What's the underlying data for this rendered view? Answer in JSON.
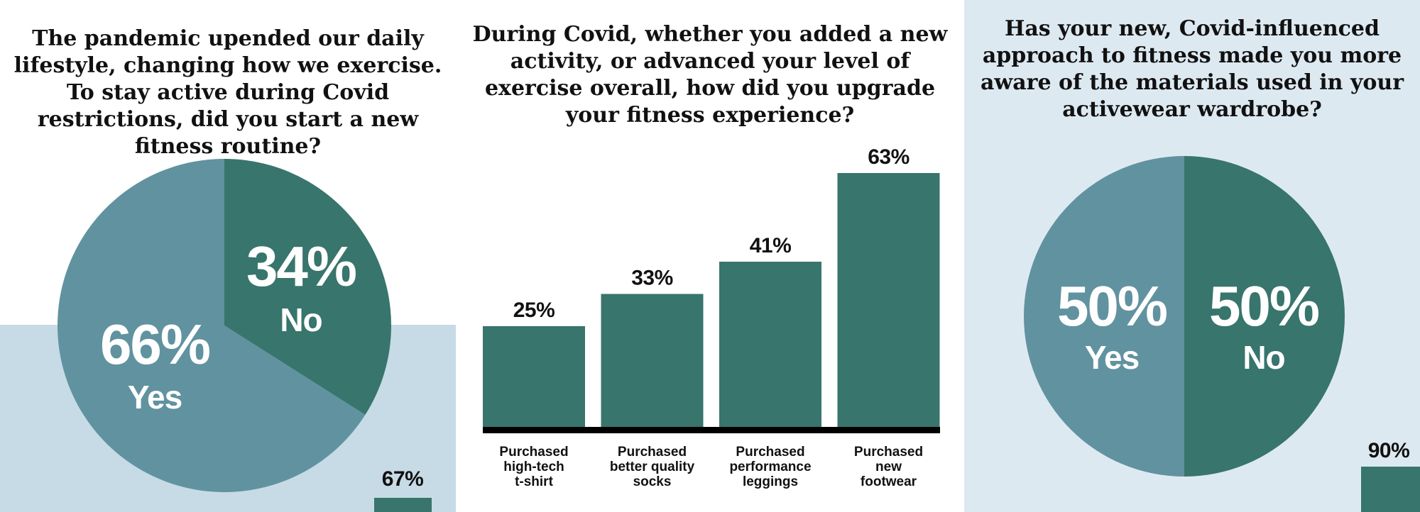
{
  "colors": {
    "dark": "#38756c",
    "light": "#6192a0",
    "axis": "#000000",
    "panel_light_blue": "#c6dbe6",
    "panel_pale_blue": "#dde9f1"
  },
  "chart_data": [
    {
      "type": "pie",
      "title": "The pandemic upended our daily lifestyle, changing how we exercise. To stay active during Covid restrictions, did you start a new fitness routine?",
      "slices": [
        {
          "label": "No",
          "value": 34,
          "value_text": "34%",
          "color": "#38756c"
        },
        {
          "label": "Yes",
          "value": 66,
          "value_text": "66%",
          "color": "#6192a0"
        }
      ],
      "partial_bar_label": "67%"
    },
    {
      "type": "bar",
      "title": "During Covid, whether you added a new activity, or advanced your level of exercise overall, how did you upgrade your fitness experience?",
      "categories": [
        [
          "Purchased",
          "high-tech",
          "t-shirt"
        ],
        [
          "Purchased",
          "better quality",
          "socks"
        ],
        [
          "Purchased",
          "performance",
          "leggings"
        ],
        [
          "Purchased",
          "new",
          "footwear"
        ]
      ],
      "values": [
        25,
        33,
        41,
        63
      ],
      "value_labels": [
        "25%",
        "33%",
        "41%",
        "63%"
      ],
      "ylim": [
        0,
        63
      ],
      "color": "#38756c"
    },
    {
      "type": "pie",
      "title": "Has your new, Covid-influenced approach to fitness made you more aware of the materials used in your activewear wardrobe?",
      "slices": [
        {
          "label": "No",
          "value": 50,
          "value_text": "50%",
          "color": "#38756c"
        },
        {
          "label": "Yes",
          "value": 50,
          "value_text": "50%",
          "color": "#6192a0"
        }
      ],
      "partial_bar_label": "90%"
    }
  ]
}
